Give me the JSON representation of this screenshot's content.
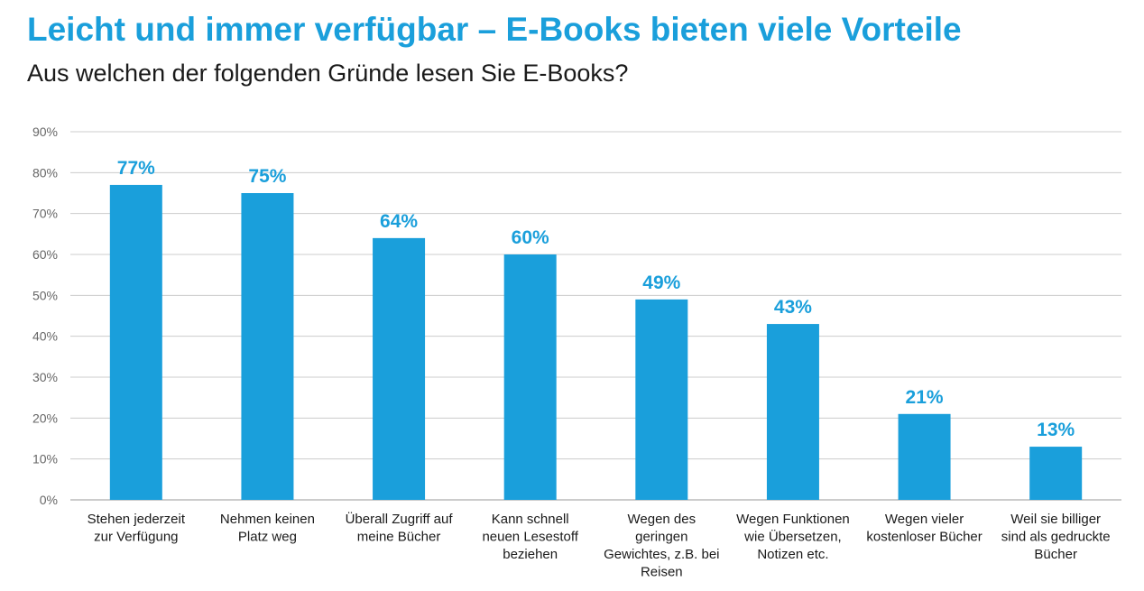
{
  "title": "Leicht und immer verfügbar – E-Books bieten viele Vorteile",
  "subtitle": "Aus welchen der folgenden Gründe lesen Sie E-Books?",
  "colors": {
    "accent": "#1a9fdb",
    "grid": "#cccccc",
    "text": "#1a1a1a"
  },
  "chart_data": {
    "type": "bar",
    "title": "Leicht und immer verfügbar – E-Books bieten viele Vorteile",
    "subtitle": "Aus welchen der folgenden Gründe lesen Sie E-Books?",
    "xlabel": "",
    "ylabel": "",
    "ylim": [
      0,
      90
    ],
    "yticks": [
      "0%",
      "10%",
      "20%",
      "30%",
      "40%",
      "50%",
      "60%",
      "70%",
      "80%",
      "90%"
    ],
    "grid": true,
    "categories": [
      [
        "Stehen jederzeit",
        "zur Verfügung"
      ],
      [
        "Nehmen keinen",
        "Platz weg"
      ],
      [
        "Überall Zugriff auf",
        "meine Bücher"
      ],
      [
        "Kann schnell",
        "neuen Lesestoff",
        "beziehen"
      ],
      [
        "Wegen des",
        "geringen",
        "Gewichtes, z.B. bei",
        "Reisen"
      ],
      [
        "Wegen Funktionen",
        "wie Übersetzen,",
        "Notizen etc."
      ],
      [
        "Wegen vieler",
        "kostenloser Bücher"
      ],
      [
        "Weil sie billiger",
        "sind als gedruckte",
        "Bücher"
      ]
    ],
    "values": [
      77,
      75,
      64,
      60,
      49,
      43,
      21,
      13
    ],
    "value_labels": [
      "77%",
      "75%",
      "64%",
      "60%",
      "49%",
      "43%",
      "21%",
      "13%"
    ]
  }
}
